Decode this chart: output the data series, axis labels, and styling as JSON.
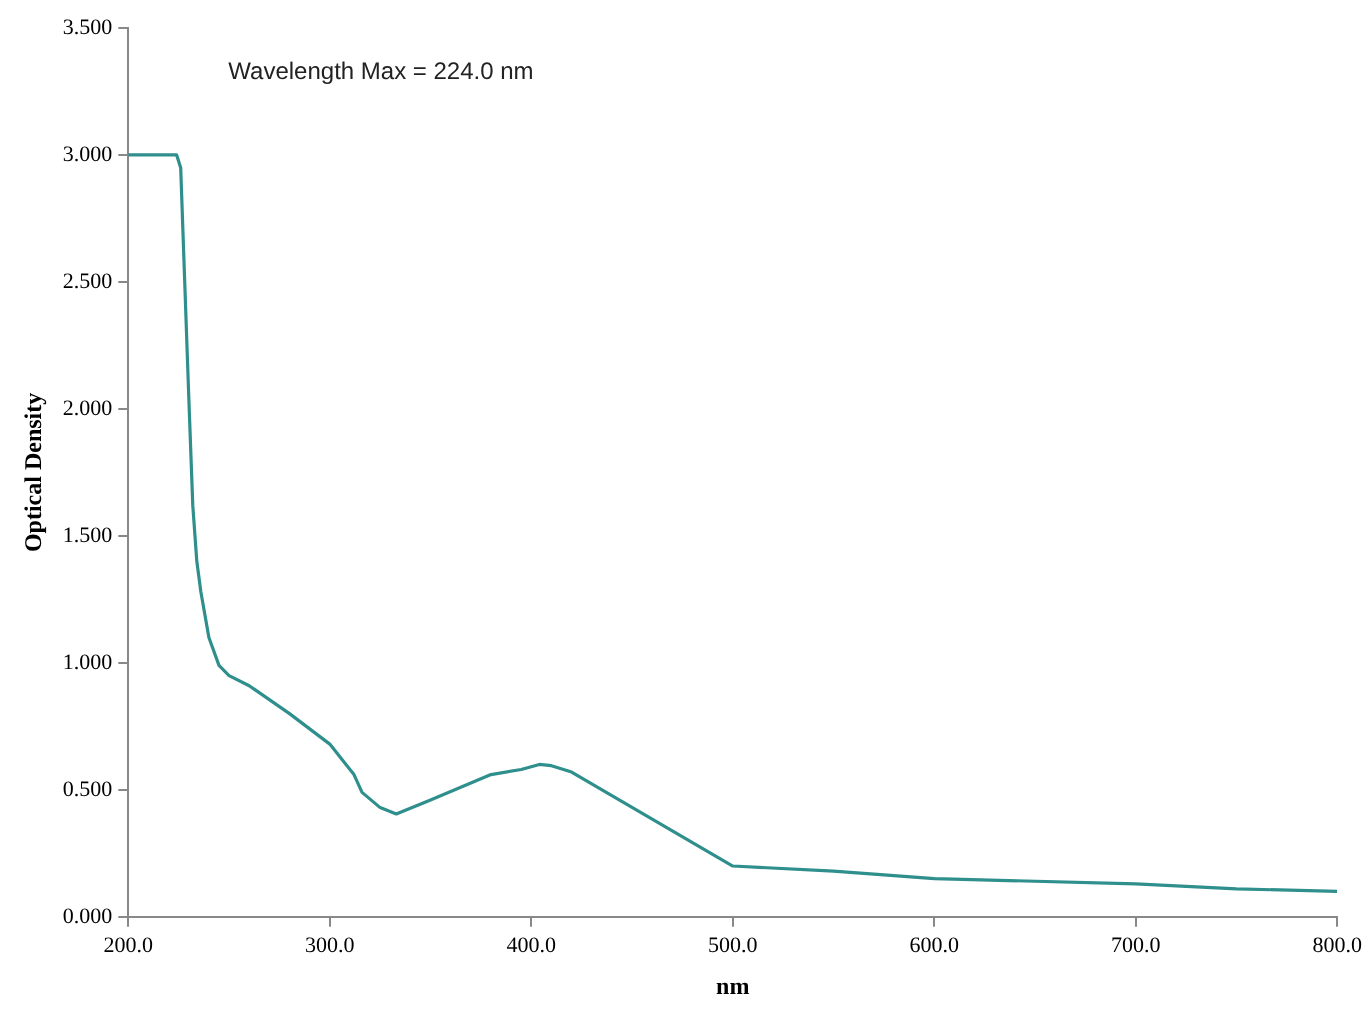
{
  "chart_data": {
    "type": "line",
    "xlabel": "nm",
    "ylabel": "Optical Density",
    "annotations": [
      "Wavelength Max = 224.0 nm"
    ],
    "xlim": [
      200,
      800
    ],
    "xticks": [
      {
        "value": 200,
        "label": "200.0"
      },
      {
        "value": 300,
        "label": "300.0"
      },
      {
        "value": 400,
        "label": "400.0"
      },
      {
        "value": 500,
        "label": "500.0"
      },
      {
        "value": 600,
        "label": "600.0"
      },
      {
        "value": 700,
        "label": "700.0"
      },
      {
        "value": 800,
        "label": "800.0"
      }
    ],
    "ylim": [
      0,
      3.5
    ],
    "yticks": [
      {
        "value": 0,
        "label": "0.000"
      },
      {
        "value": 0.5,
        "label": "0.500"
      },
      {
        "value": 1,
        "label": "1.000"
      },
      {
        "value": 1.5,
        "label": "1.500"
      },
      {
        "value": 2,
        "label": "2.000"
      },
      {
        "value": 2.5,
        "label": "2.500"
      },
      {
        "value": 3,
        "label": "3.000"
      },
      {
        "value": 3.5,
        "label": "3.500"
      }
    ],
    "grid": false,
    "legend": false,
    "marker": "none",
    "line_style": "solid",
    "x": [
      200,
      224,
      226,
      228,
      230,
      232,
      234,
      236,
      240,
      245,
      250,
      260,
      280,
      300,
      312,
      316,
      325,
      333,
      350,
      380,
      395,
      404,
      410,
      420,
      500,
      550,
      600,
      700,
      750,
      800
    ],
    "series": [
      {
        "color": "#2e8f8c",
        "values": [
          3.0,
          3.0,
          2.95,
          2.5,
          2.05,
          1.62,
          1.4,
          1.28,
          1.1,
          0.99,
          0.95,
          0.91,
          0.8,
          0.68,
          0.56,
          0.49,
          0.43,
          0.405,
          0.46,
          0.56,
          0.58,
          0.6,
          0.595,
          0.57,
          0.2,
          0.18,
          0.15,
          0.13,
          0.11,
          0.1
        ]
      }
    ]
  }
}
